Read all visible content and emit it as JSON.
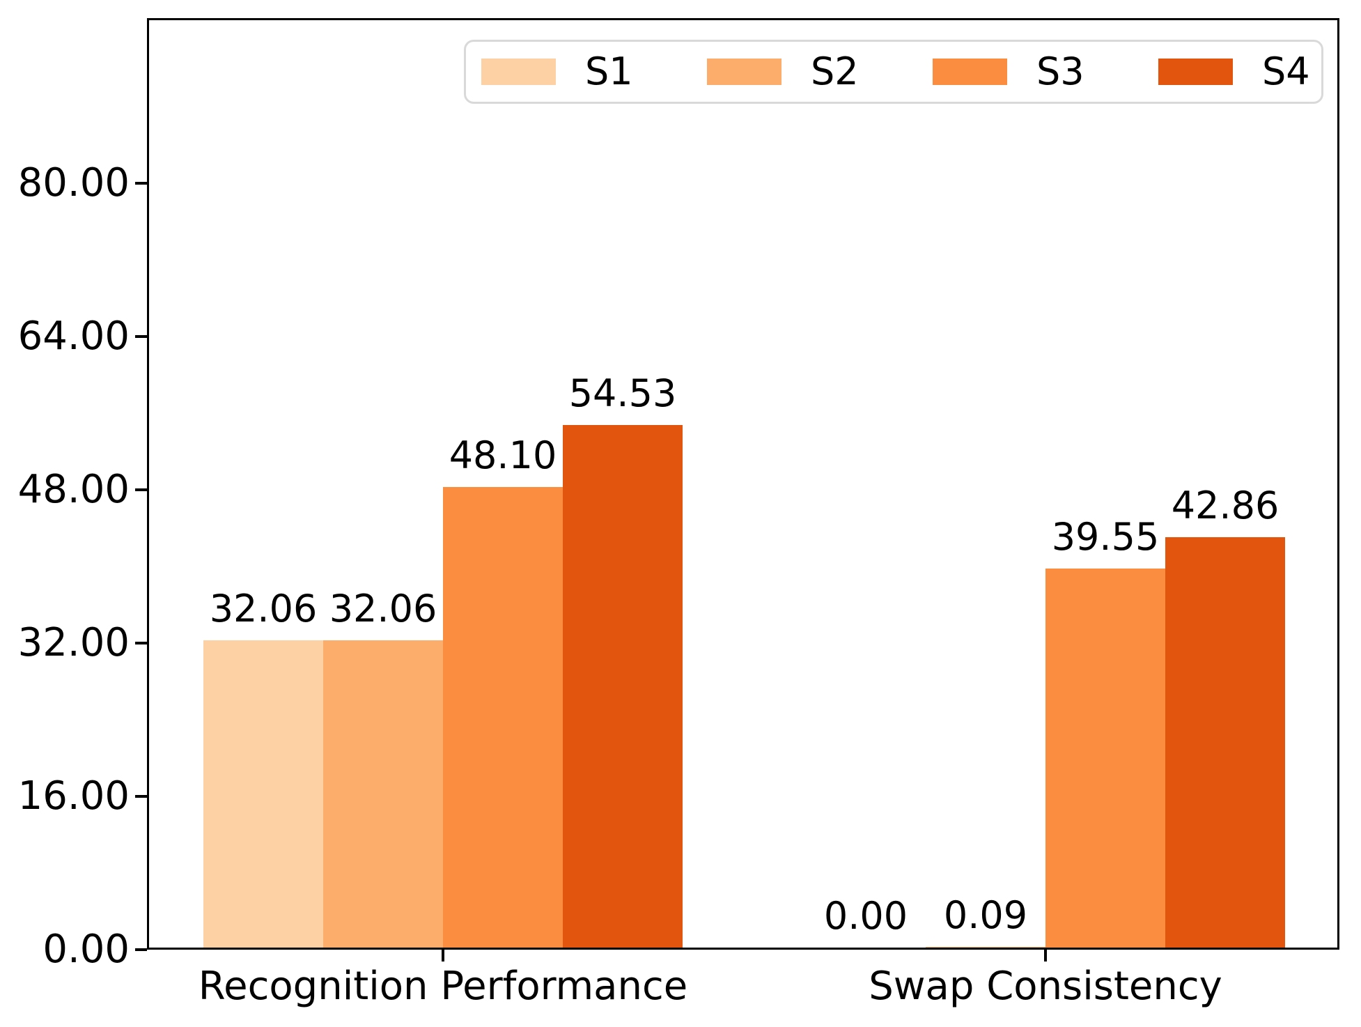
{
  "chart_data": {
    "type": "bar",
    "title": "",
    "xlabel": "",
    "ylabel": "",
    "categories": [
      "Recognition Performance",
      "Swap Consistency"
    ],
    "series": [
      {
        "name": "S1",
        "color": "#fdd1a4",
        "values": [
          32.06,
          0.0
        ]
      },
      {
        "name": "S2",
        "color": "#fcad6b",
        "values": [
          32.06,
          0.09
        ]
      },
      {
        "name": "S3",
        "color": "#fb8d40",
        "values": [
          48.1,
          39.55
        ]
      },
      {
        "name": "S4",
        "color": "#e2550e",
        "values": [
          54.53,
          42.86
        ]
      }
    ],
    "bar_value_labels": [
      [
        "32.06",
        "32.06",
        "48.10",
        "54.53"
      ],
      [
        "0.00",
        "0.09",
        "39.55",
        "42.86"
      ]
    ],
    "y_ticks": [
      {
        "value": 0,
        "label": "0.00"
      },
      {
        "value": 16,
        "label": "16.00"
      },
      {
        "value": 32,
        "label": "32.00"
      },
      {
        "value": 48,
        "label": "48.00"
      },
      {
        "value": 64,
        "label": "64.00"
      },
      {
        "value": 80,
        "label": "80.00"
      }
    ],
    "ylim": [
      0,
      97.1
    ],
    "grid": false,
    "legend_position": "upper center",
    "legend_entries": [
      "S1",
      "S2",
      "S3",
      "S4"
    ],
    "colors": {
      "axis": "#000000",
      "text": "#000000",
      "legend_border": "#d9d9d9",
      "background": "#ffffff"
    }
  }
}
